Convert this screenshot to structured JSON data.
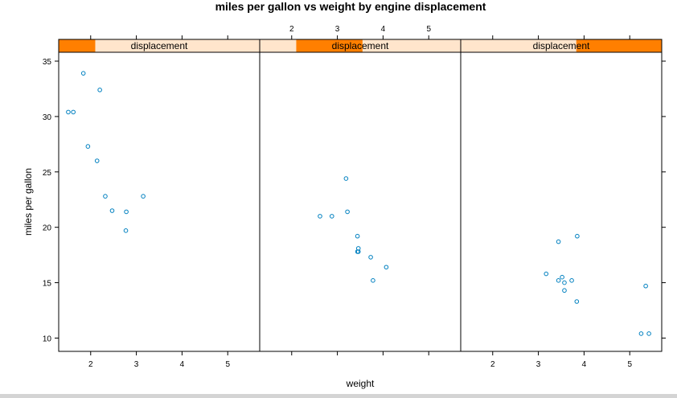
{
  "chart_data": {
    "type": "scatter",
    "title": "miles per gallon vs weight by engine displacement",
    "xlabel": "weight",
    "ylabel": "miles per gallon",
    "xlim": [
      1.3,
      5.7
    ],
    "ylim": [
      8.8,
      35.8
    ],
    "x_ticks": [
      "2",
      "3",
      "4",
      "5"
    ],
    "y_ticks": [
      "10",
      "15",
      "20",
      "25",
      "30",
      "35"
    ],
    "strip_label": "displacement",
    "point_color": "#0080c0",
    "strip_bg": "#ffe5cc",
    "strip_fill": "#ff7f00",
    "panels": [
      {
        "strip": "displacement",
        "strip_range": [
          1.3,
          2.1
        ],
        "x": [
          1.51,
          1.62,
          1.84,
          1.94,
          2.14,
          2.2,
          2.32,
          2.47,
          2.78,
          2.77,
          3.15
        ],
        "y": [
          30.4,
          30.4,
          33.9,
          27.3,
          26.0,
          32.4,
          22.8,
          21.5,
          21.4,
          19.7,
          22.8
        ]
      },
      {
        "strip": "displacement",
        "strip_range": [
          2.1,
          3.55
        ],
        "x": [
          2.62,
          2.88,
          3.19,
          3.22,
          3.44,
          3.44,
          3.46,
          3.46,
          3.73,
          3.78,
          4.07
        ],
        "y": [
          21.0,
          21.0,
          24.4,
          21.4,
          19.2,
          17.8,
          18.1,
          17.8,
          17.3,
          15.2,
          16.4
        ]
      },
      {
        "strip": "displacement",
        "strip_range": [
          3.83,
          5.7
        ],
        "x": [
          3.17,
          3.44,
          3.44,
          3.52,
          3.57,
          3.57,
          3.73,
          3.84,
          3.85,
          5.25,
          5.35,
          5.42
        ],
        "y": [
          15.8,
          18.7,
          15.2,
          15.5,
          14.3,
          15.0,
          15.2,
          13.3,
          19.2,
          10.4,
          14.7,
          10.4
        ]
      }
    ]
  }
}
